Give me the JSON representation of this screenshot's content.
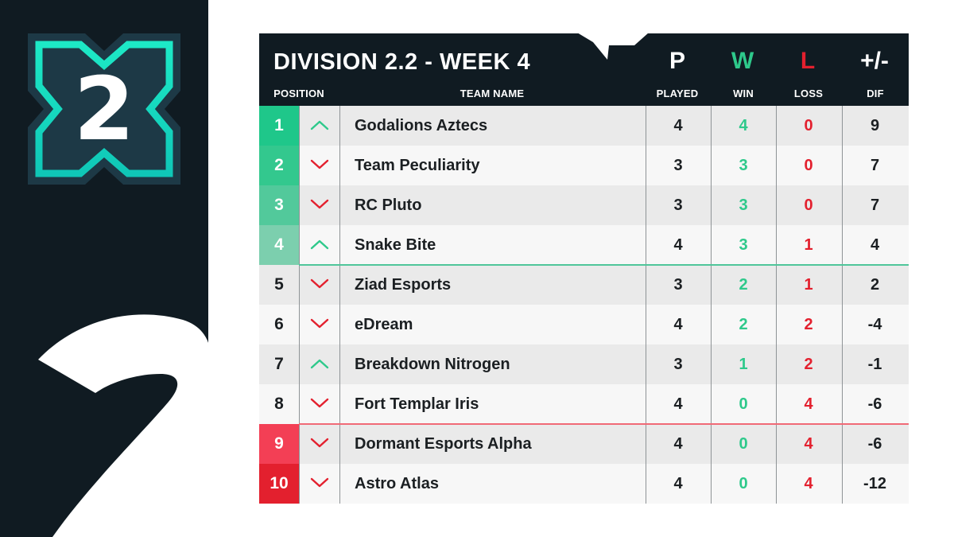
{
  "logo": {
    "number": "2",
    "accent_color": "#1de9c6"
  },
  "header": {
    "title": "DIVISION 2.2 - WEEK 4",
    "position_label": "POSITION",
    "team_label": "TEAM NAME",
    "columns": [
      {
        "symbol": "P",
        "label": "PLAYED",
        "color": "#ffffff"
      },
      {
        "symbol": "W",
        "label": "WIN",
        "color": "#2ec98b"
      },
      {
        "symbol": "L",
        "label": "LOSS",
        "color": "#e3202e"
      },
      {
        "symbol": "+/-",
        "label": "DIF",
        "color": "#ffffff"
      }
    ]
  },
  "rows": [
    {
      "pos": "1",
      "trend": "up",
      "team": "Godalions Aztecs",
      "played": "4",
      "win": "4",
      "loss": "0",
      "dif": "9",
      "pos_color": "#1fc78a"
    },
    {
      "pos": "2",
      "trend": "down",
      "team": "Team Peculiarity",
      "played": "3",
      "win": "3",
      "loss": "0",
      "dif": "7",
      "pos_color": "#33c88e"
    },
    {
      "pos": "3",
      "trend": "down",
      "team": "RC Pluto",
      "played": "3",
      "win": "3",
      "loss": "0",
      "dif": "7",
      "pos_color": "#52c99b"
    },
    {
      "pos": "4",
      "trend": "up",
      "team": "Snake Bite",
      "played": "4",
      "win": "3",
      "loss": "1",
      "dif": "4",
      "pos_color": "#7ccfae"
    },
    {
      "pos": "5",
      "trend": "down",
      "team": "Ziad Esports",
      "played": "3",
      "win": "2",
      "loss": "1",
      "dif": "2",
      "pos_color": ""
    },
    {
      "pos": "6",
      "trend": "down",
      "team": "eDream",
      "played": "4",
      "win": "2",
      "loss": "2",
      "dif": "-4",
      "pos_color": ""
    },
    {
      "pos": "7",
      "trend": "up",
      "team": "Breakdown Nitrogen",
      "played": "3",
      "win": "1",
      "loss": "2",
      "dif": "-1",
      "pos_color": ""
    },
    {
      "pos": "8",
      "trend": "down",
      "team": "Fort Templar Iris",
      "played": "4",
      "win": "0",
      "loss": "4",
      "dif": "-6",
      "pos_color": ""
    },
    {
      "pos": "9",
      "trend": "down",
      "team": "Dormant Esports Alpha",
      "played": "4",
      "win": "0",
      "loss": "4",
      "dif": "-6",
      "pos_color": "#f33f55"
    },
    {
      "pos": "10",
      "trend": "down",
      "team": "Astro Atlas",
      "played": "4",
      "win": "0",
      "loss": "4",
      "dif": "-12",
      "pos_color": "#e3202e"
    }
  ],
  "colors": {
    "up": "#2ec98b",
    "down": "#e3202e",
    "dark": "#101b22"
  }
}
